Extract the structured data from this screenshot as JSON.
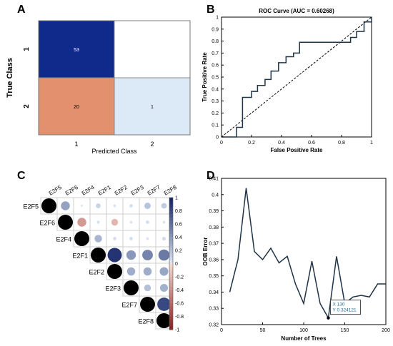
{
  "panels": {
    "A": {
      "letter": "A",
      "ylabel": "True Class",
      "xlabel": "Predicted Class",
      "row_labels": [
        "1",
        "2"
      ],
      "col_labels": [
        "1",
        "2"
      ],
      "cells": [
        {
          "row": 0,
          "col": 0,
          "value": "53",
          "color": "#0f2a8a"
        },
        {
          "row": 0,
          "col": 1,
          "value": "",
          "color": "#ffffff"
        },
        {
          "row": 1,
          "col": 0,
          "value": "20",
          "color": "#e2906e"
        },
        {
          "row": 1,
          "col": 1,
          "value": "1",
          "color": "#dceaf8"
        }
      ]
    },
    "B": {
      "letter": "B",
      "title": "ROC Curve (AUC = 0.60268)",
      "xlabel": "False Positive Rate",
      "ylabel": "True Positive Rate",
      "xticks": [
        "0",
        "0.2",
        "0.4",
        "0.6",
        "0.8",
        "1"
      ],
      "yticks": [
        "0",
        "0.1",
        "0.2",
        "0.3",
        "0.4",
        "0.5",
        "0.6",
        "0.7",
        "0.8",
        "0.9",
        "1"
      ]
    },
    "C": {
      "letter": "C",
      "labels": [
        "E2F5",
        "E2F6",
        "E2F4",
        "E2F1",
        "E2F2",
        "E2F3",
        "E2F7",
        "E2F8"
      ],
      "colorbar_ticks": [
        "1",
        "0.8",
        "0.6",
        "0.4",
        "0.2",
        "0",
        "-0.2",
        "-0.4",
        "-0.6",
        "-0.8",
        "-1"
      ]
    },
    "D": {
      "letter": "D",
      "xlabel": "Number of Trees",
      "ylabel": "OOB Error",
      "xticks": [
        "0",
        "50",
        "100",
        "150",
        "200"
      ],
      "yticks": [
        "0.32",
        "0.33",
        "0.34",
        "0.35",
        "0.36",
        "0.37",
        "0.38",
        "0.39",
        "0.4",
        "0.41"
      ],
      "datatip": {
        "x_label": "X 130",
        "y_label": "Y 0.324121"
      }
    }
  },
  "colors": {
    "line": "#1f3347",
    "diagonal": "#000000",
    "dark_blue": "#0f2a8a",
    "salmon": "#e2906e",
    "light_blue": "#dceaf8",
    "datatip_text": "#1a6b9a"
  },
  "chart_data": [
    {
      "type": "heatmap",
      "title": "",
      "xlabel": "Predicted Class",
      "ylabel": "True Class",
      "x_categories": [
        "1",
        "2"
      ],
      "y_categories": [
        "1",
        "2"
      ],
      "values": [
        [
          53,
          null
        ],
        [
          20,
          1
        ]
      ]
    },
    {
      "type": "line",
      "title": "ROC Curve (AUC = 0.60268)",
      "xlabel": "False Positive Rate",
      "ylabel": "True Positive Rate",
      "xlim": [
        0,
        1
      ],
      "ylim": [
        0,
        1
      ],
      "grid": false,
      "series": [
        {
          "name": "",
          "x": [
            0,
            0.1,
            0.1,
            0.14,
            0.14,
            0.2,
            0.2,
            0.24,
            0.24,
            0.29,
            0.29,
            0.33,
            0.33,
            0.38,
            0.38,
            0.43,
            0.43,
            0.48,
            0.48,
            0.52,
            0.52,
            0.86,
            0.86,
            0.9,
            0.9,
            0.95,
            0.95,
            1,
            1
          ],
          "y": [
            0,
            0,
            0.08,
            0.08,
            0.33,
            0.33,
            0.38,
            0.38,
            0.43,
            0.43,
            0.48,
            0.48,
            0.55,
            0.55,
            0.62,
            0.62,
            0.67,
            0.67,
            0.7,
            0.7,
            0.79,
            0.79,
            0.83,
            0.83,
            0.88,
            0.88,
            0.96,
            0.96,
            1
          ]
        }
      ],
      "diagonal": {
        "x": [
          0,
          1
        ],
        "y": [
          0,
          1
        ],
        "style": "dashed"
      }
    },
    {
      "type": "heatmap",
      "title": "",
      "labels": [
        "E2F5",
        "E2F6",
        "E2F4",
        "E2F1",
        "E2F2",
        "E2F3",
        "E2F7",
        "E2F8"
      ],
      "colorbar_range": [
        -1,
        1
      ],
      "values": [
        [
          1,
          0.35,
          0.02,
          0.1,
          0.03,
          0.05,
          0.18,
          0.14
        ],
        [
          null,
          1,
          -0.35,
          0.04,
          -0.2,
          0.03,
          0.05,
          0.03
        ],
        [
          null,
          null,
          1,
          0.25,
          0.05,
          0.05,
          0.03,
          0.06
        ],
        [
          null,
          null,
          null,
          1,
          0.9,
          0.4,
          0.5,
          0.55
        ],
        [
          null,
          null,
          null,
          null,
          1,
          0.3,
          0.3,
          0.33
        ],
        [
          null,
          null,
          null,
          null,
          null,
          1,
          0.2,
          0.28
        ],
        [
          null,
          null,
          null,
          null,
          null,
          null,
          1,
          0.8
        ],
        [
          null,
          null,
          null,
          null,
          null,
          null,
          null,
          1
        ]
      ]
    },
    {
      "type": "line",
      "title": "",
      "xlabel": "Number of Trees",
      "ylabel": "OOB Error",
      "xlim": [
        0,
        200
      ],
      "ylim": [
        0.32,
        0.41
      ],
      "grid": false,
      "series": [
        {
          "name": "",
          "x": [
            10,
            20,
            30,
            40,
            50,
            60,
            70,
            80,
            90,
            100,
            110,
            120,
            130,
            140,
            150,
            160,
            170,
            180,
            190,
            200
          ],
          "y": [
            0.34,
            0.36,
            0.404,
            0.365,
            0.36,
            0.367,
            0.358,
            0.362,
            0.345,
            0.333,
            0.359,
            0.333,
            0.3241,
            0.362,
            0.333,
            0.337,
            0.338,
            0.337,
            0.345,
            0.345
          ]
        }
      ]
    }
  ]
}
